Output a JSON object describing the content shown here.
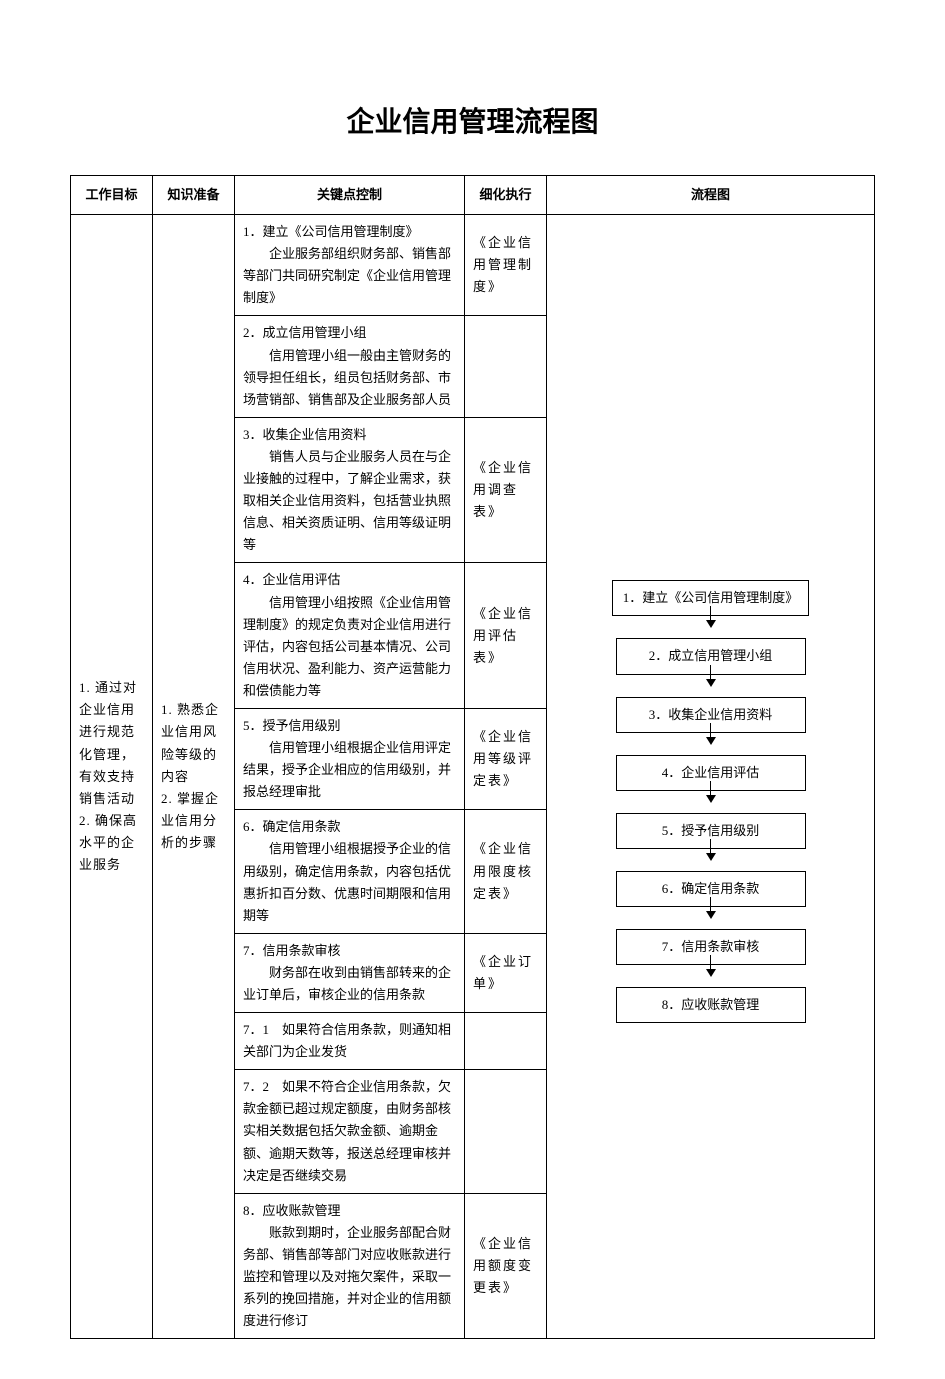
{
  "title": "企业信用管理流程图",
  "headers": {
    "goal": "工作目标",
    "knowledge": "知识准备",
    "control": "关键点控制",
    "detail": "细化执行",
    "flow": "流程图"
  },
  "goal_text": "1. 通过对企业信用进行规范化管理，有效支持销售活动\n2. 确保高水平的企业服务",
  "knowledge_text": "1. 熟悉企业信用风险等级的内容\n2. 掌握企业信用分析的步骤",
  "rows": [
    {
      "t": "1．建立《公司信用管理制度》",
      "b": "企业服务部组织财务部、销售部等部门共同研究制定《企业信用管理制度》",
      "d": "《企业信用管理制度》"
    },
    {
      "t": "2．成立信用管理小组",
      "b": "信用管理小组一般由主管财务的领导担任组长，组员包括财务部、市场营销部、销售部及企业服务部人员",
      "d": ""
    },
    {
      "t": "3．收集企业信用资料",
      "b": "销售人员与企业服务人员在与企业接触的过程中，了解企业需求，获取相关企业信用资料，包括营业执照信息、相关资质证明、信用等级证明等",
      "d": "《企业信用调查表》"
    },
    {
      "t": "4．企业信用评估",
      "b": "信用管理小组按照《企业信用管理制度》的规定负责对企业信用进行评估，内容包括公司基本情况、公司信用状况、盈利能力、资产运营能力和偿债能力等",
      "d": "《企业信用评估表》"
    },
    {
      "t": "5．授予信用级别",
      "b": "信用管理小组根据企业信用评定结果，授予企业相应的信用级别，并报总经理审批",
      "d": "《企业信用等级评定表》"
    },
    {
      "t": "6．确定信用条款",
      "b": "信用管理小组根据授予企业的信用级别，确定信用条款，内容包括优惠折扣百分数、优惠时间期限和信用期等",
      "d": "《企业信用限度核定表》"
    },
    {
      "t": "7．信用条款审核",
      "b": "财务部在收到由销售部转来的企业订单后，审核企业的信用条款",
      "d": "《企业订单》"
    },
    {
      "t": "7．1　如果符合信用条款，则通知相关部门为企业发货",
      "b": "",
      "d": ""
    },
    {
      "t": "7．2　如果不符合企业信用条款，欠款金额已超过规定额度，由财务部核实相关数据包括欠款金额、逾期金额、逾期天数等，报送总经理审核并决定是否继续交易",
      "b": "",
      "d": ""
    },
    {
      "t": "8．应收账款管理",
      "b": "账款到期时，企业服务部配合财务部、销售部等部门对应收账款进行监控和管理以及对拖欠案件，采取一系列的挽回措施，并对企业的信用额度进行修订",
      "d": "《企业信用额度变更表》"
    }
  ],
  "flow_steps": [
    "1．建立《公司信用管理制度》",
    "2．成立信用管理小组",
    "3．收集企业信用资料",
    "4．企业信用评估",
    "5．授予信用级别",
    "6．确定信用条款",
    "7．信用条款审核",
    "8．应收账款管理"
  ]
}
